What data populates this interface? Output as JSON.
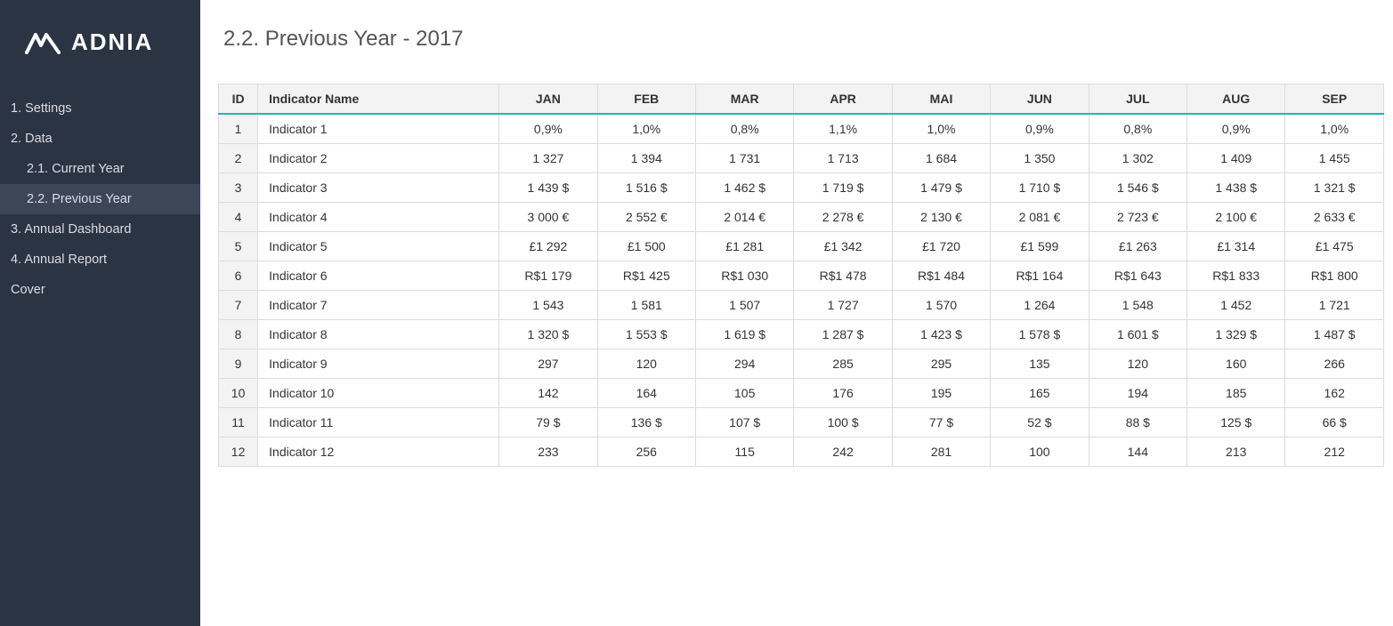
{
  "brand": {
    "name": "ADNIA"
  },
  "sidebar": {
    "items": [
      {
        "label": "1. Settings",
        "sub": false,
        "active": false
      },
      {
        "label": "2. Data",
        "sub": false,
        "active": false
      },
      {
        "label": "2.1. Current Year",
        "sub": true,
        "active": false
      },
      {
        "label": "2.2. Previous Year",
        "sub": true,
        "active": true
      },
      {
        "label": "3. Annual Dashboard",
        "sub": false,
        "active": false
      },
      {
        "label": "4. Annual Report",
        "sub": false,
        "active": false
      },
      {
        "label": "Cover",
        "sub": false,
        "active": false
      }
    ]
  },
  "page": {
    "title": "2.2. Previous Year - 2017"
  },
  "table": {
    "columns": [
      {
        "key": "id",
        "label": "ID"
      },
      {
        "key": "name",
        "label": "Indicator Name"
      },
      {
        "key": "jan",
        "label": "JAN"
      },
      {
        "key": "feb",
        "label": "FEB"
      },
      {
        "key": "mar",
        "label": "MAR"
      },
      {
        "key": "apr",
        "label": "APR"
      },
      {
        "key": "mai",
        "label": "MAI"
      },
      {
        "key": "jun",
        "label": "JUN"
      },
      {
        "key": "jul",
        "label": "JUL"
      },
      {
        "key": "aug",
        "label": "AUG"
      },
      {
        "key": "sep",
        "label": "SEP"
      }
    ],
    "rows": [
      {
        "id": "1",
        "name": "Indicator 1",
        "values": [
          "0,9%",
          "1,0%",
          "0,8%",
          "1,1%",
          "1,0%",
          "0,9%",
          "0,8%",
          "0,9%",
          "1,0%"
        ]
      },
      {
        "id": "2",
        "name": "Indicator 2",
        "values": [
          "1 327",
          "1 394",
          "1 731",
          "1 713",
          "1 684",
          "1 350",
          "1 302",
          "1 409",
          "1 455"
        ]
      },
      {
        "id": "3",
        "name": "Indicator 3",
        "values": [
          "1 439 $",
          "1 516 $",
          "1 462 $",
          "1 719 $",
          "1 479 $",
          "1 710 $",
          "1 546 $",
          "1 438 $",
          "1 321 $"
        ]
      },
      {
        "id": "4",
        "name": "Indicator 4",
        "values": [
          "3 000 €",
          "2 552 €",
          "2 014 €",
          "2 278 €",
          "2 130 €",
          "2 081 €",
          "2 723 €",
          "2 100 €",
          "2 633 €"
        ]
      },
      {
        "id": "5",
        "name": "Indicator 5",
        "values": [
          "£1 292",
          "£1 500",
          "£1 281",
          "£1 342",
          "£1 720",
          "£1 599",
          "£1 263",
          "£1 314",
          "£1 475"
        ]
      },
      {
        "id": "6",
        "name": "Indicator 6",
        "values": [
          "R$1 179",
          "R$1 425",
          "R$1 030",
          "R$1 478",
          "R$1 484",
          "R$1 164",
          "R$1 643",
          "R$1 833",
          "R$1 800"
        ]
      },
      {
        "id": "7",
        "name": "Indicator 7",
        "values": [
          "1 543",
          "1 581",
          "1 507",
          "1 727",
          "1 570",
          "1 264",
          "1 548",
          "1 452",
          "1 721"
        ]
      },
      {
        "id": "8",
        "name": "Indicator 8",
        "values": [
          "1 320 $",
          "1 553 $",
          "1 619 $",
          "1 287 $",
          "1 423 $",
          "1 578 $",
          "1 601 $",
          "1 329 $",
          "1 487 $"
        ]
      },
      {
        "id": "9",
        "name": "Indicator 9",
        "values": [
          "297",
          "120",
          "294",
          "285",
          "295",
          "135",
          "120",
          "160",
          "266"
        ]
      },
      {
        "id": "10",
        "name": "Indicator 10",
        "values": [
          "142",
          "164",
          "105",
          "176",
          "195",
          "165",
          "194",
          "185",
          "162"
        ]
      },
      {
        "id": "11",
        "name": "Indicator 11",
        "values": [
          "79 $",
          "136 $",
          "107 $",
          "100 $",
          "77 $",
          "52 $",
          "88 $",
          "125 $",
          "66 $"
        ]
      },
      {
        "id": "12",
        "name": "Indicator 12",
        "values": [
          "233",
          "256",
          "115",
          "242",
          "281",
          "100",
          "144",
          "213",
          "212"
        ]
      }
    ]
  },
  "style": {
    "sidebar_bg": "#2b3443",
    "sidebar_active_bg": "#3d4656",
    "header_bg": "#f3f3f3",
    "accent_border": "#1fb8a8",
    "cell_border": "#dcdcdc",
    "text_color": "#333333",
    "title_color": "#555555"
  }
}
